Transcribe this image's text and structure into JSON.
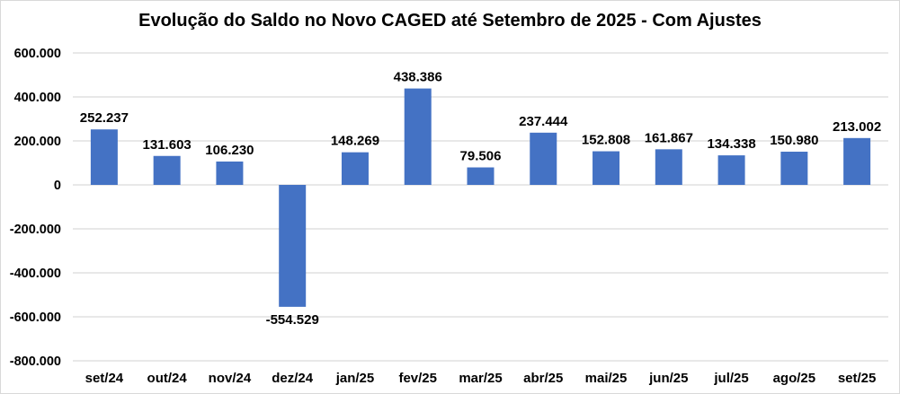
{
  "chart_data": {
    "type": "bar",
    "title": "Evolução do Saldo no Novo CAGED até Setembro de 2025 - Com Ajustes",
    "categories": [
      "set/24",
      "out/24",
      "nov/24",
      "dez/24",
      "jan/25",
      "fev/25",
      "mar/25",
      "abr/25",
      "mai/25",
      "jun/25",
      "jul/25",
      "ago/25",
      "set/25"
    ],
    "values": [
      252237,
      131603,
      106230,
      -554529,
      148269,
      438386,
      79506,
      237444,
      152808,
      161867,
      134338,
      150980,
      213002
    ],
    "data_labels": [
      "252.237",
      "131.603",
      "106.230",
      "-554.529",
      "148.269",
      "438.386",
      "79.506",
      "237.444",
      "152.808",
      "161.867",
      "134.338",
      "150.980",
      "213.002"
    ],
    "xlabel": "",
    "ylabel": "",
    "ylim": [
      -800000,
      600000
    ],
    "ytick_step": 200000,
    "ytick_labels": [
      "600.000",
      "400.000",
      "200.000",
      "0",
      "-200.000",
      "-400.000",
      "-600.000",
      "-800.000"
    ],
    "grid": true,
    "legend": "none",
    "colors": {
      "bar": "#4472C4",
      "gridline": "#d9d9d9",
      "text": "#000000",
      "frame_border": "#d9d9d9",
      "background": "#ffffff"
    }
  }
}
